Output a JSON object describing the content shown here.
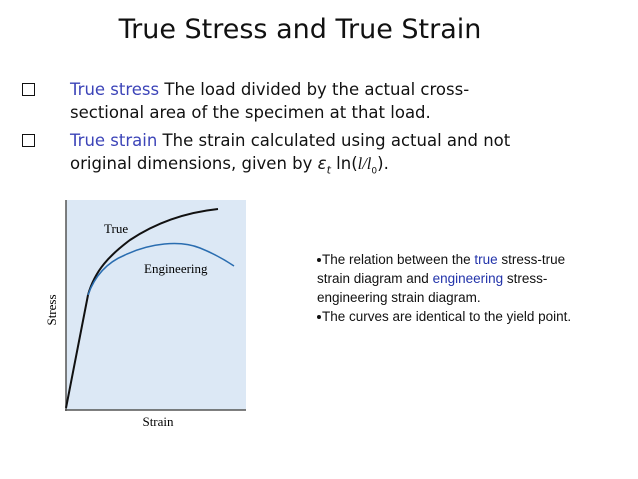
{
  "title": "True Stress and True Strain",
  "bullets": [
    {
      "term": "True stress",
      "text": "The load divided by the actual cross-sectional area of the specimen at that load."
    },
    {
      "term": "True strain",
      "text": "The strain calculated using actual and not original dimensions, given by",
      "formula": {
        "symbol": "ε",
        "subscript": "t",
        "open": "ln(",
        "ratio": "l/l",
        "ratio_subscript": "0",
        "close": ")."
      }
    }
  ],
  "figure": {
    "curve_labels": [
      "True",
      "Engineering"
    ],
    "x_label": "Strain",
    "y_label": "Stress"
  },
  "notes": [
    [
      "The relation between the",
      "true",
      "stress-true strain diagram and",
      "engineering",
      "stress-engineering strain diagram."
    ],
    [
      "The curves are identical to the yield point."
    ]
  ]
}
